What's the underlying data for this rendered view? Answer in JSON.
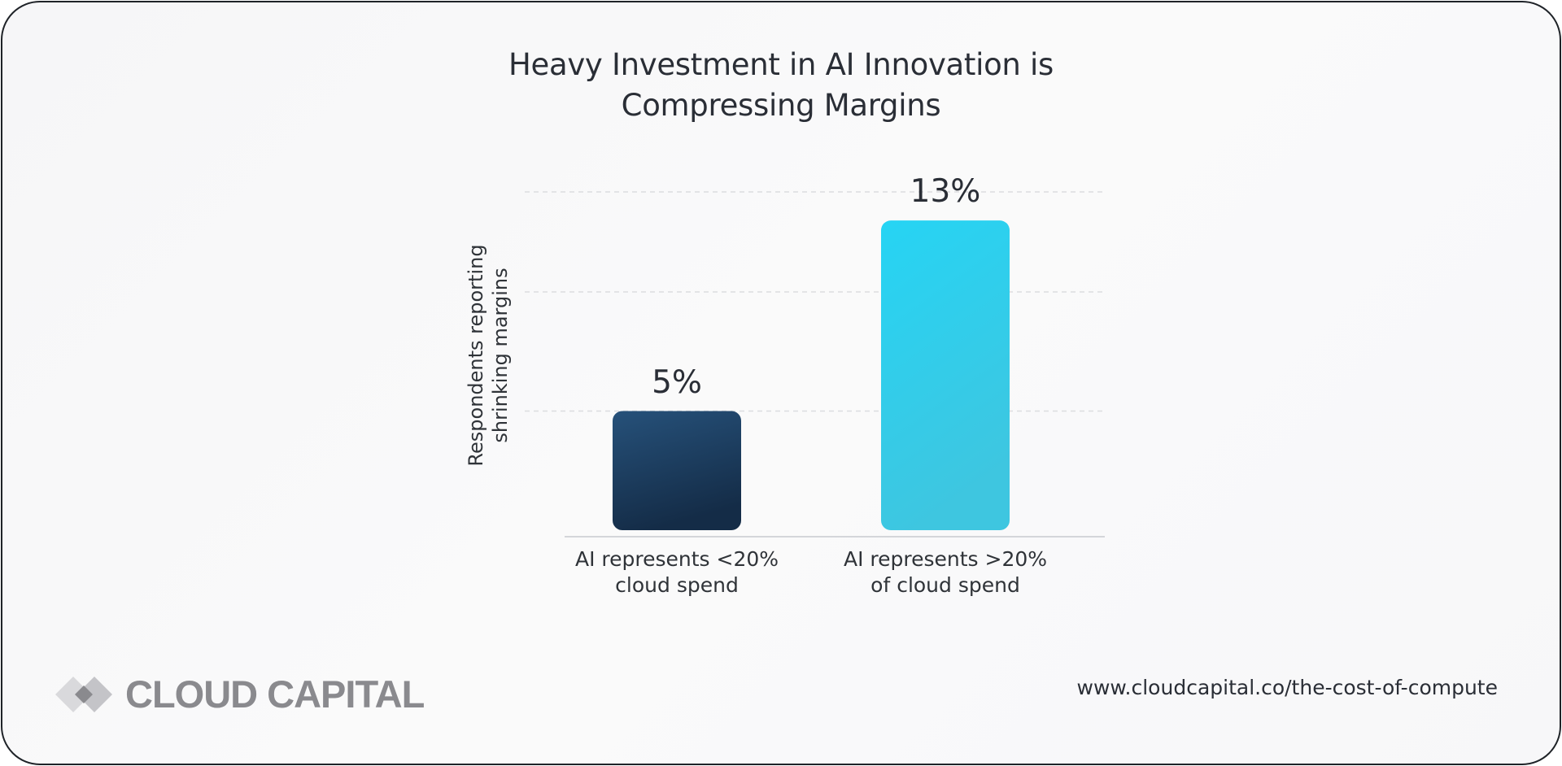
{
  "chart_data": {
    "type": "bar",
    "title_lines": [
      "Heavy Investment in AI Innovation is",
      "Compressing Margins"
    ],
    "ylabel_lines": [
      "Respondents reporting",
      "shrinking margins"
    ],
    "xlabel": "",
    "categories": [
      [
        "AI represents <20%",
        "cloud spend"
      ],
      [
        "AI represents >20%",
        "of cloud spend"
      ]
    ],
    "values": [
      5,
      13
    ],
    "value_labels": [
      "5%",
      "13%"
    ],
    "ylim": [
      0,
      14.2
    ],
    "gridlines": [
      5,
      10,
      14.2
    ],
    "grid": true,
    "bar_colors": [
      {
        "top": "#26517a",
        "bottom": "#142c47"
      },
      {
        "top": "#26d4f4",
        "bottom": "#3ec6e0"
      }
    ]
  },
  "footer": {
    "brand": "CLOUD CAPITAL",
    "url": "www.cloudcapital.co/the-cost-of-compute"
  },
  "icons": {
    "logo": "diamond-logo-icon"
  }
}
